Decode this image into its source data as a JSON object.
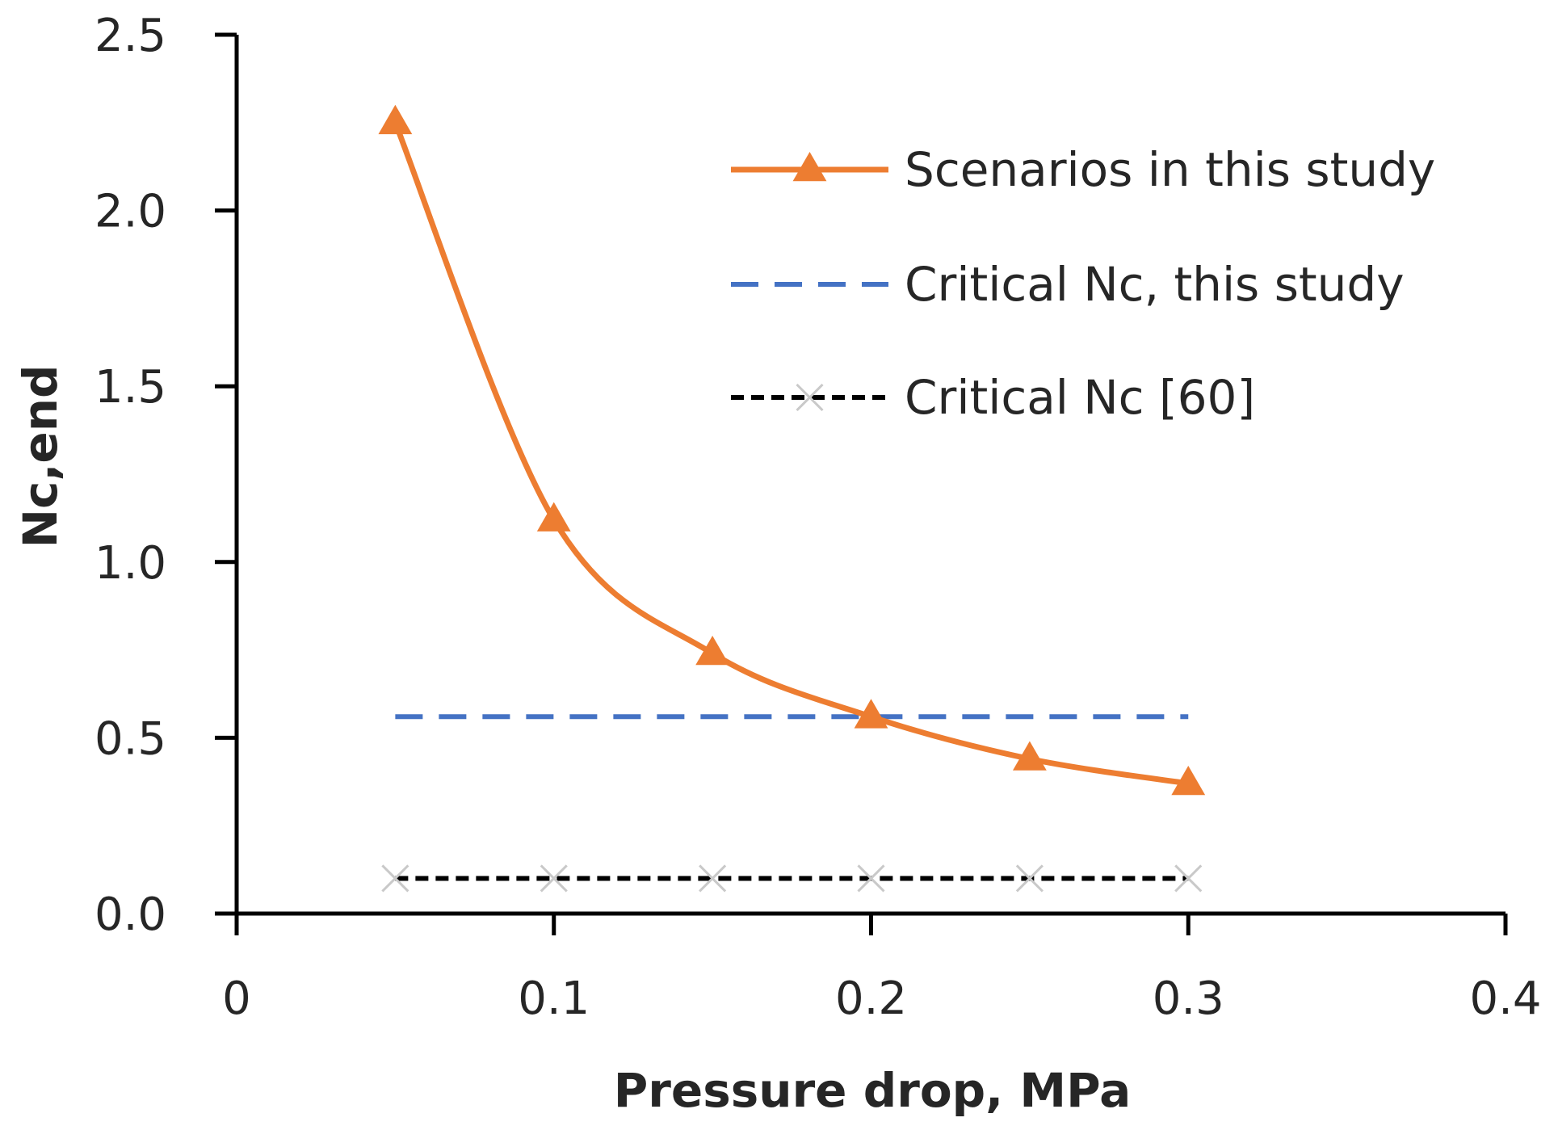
{
  "chart_data": {
    "type": "line",
    "title": "",
    "xlabel": "Pressure drop, MPa",
    "ylabel": "Nc,end",
    "xlim": [
      0,
      0.4
    ],
    "ylim": [
      0,
      2.5
    ],
    "x_ticks": [
      0,
      0.1,
      0.2,
      0.3,
      0.4
    ],
    "x_tick_labels": [
      "0",
      "0.1",
      "0.2",
      "0.3",
      "0.4"
    ],
    "y_ticks": [
      0,
      0.5,
      1.0,
      1.5,
      2.0,
      2.5
    ],
    "y_tick_labels": [
      "0.0",
      "0.5",
      "1.0",
      "1.5",
      "2.0",
      "2.5"
    ],
    "grid": false,
    "legend_position": "top-right",
    "series": [
      {
        "name": "Scenarios in this study",
        "color": "#ed7d31",
        "style": "solid-smooth",
        "marker": "triangle",
        "x": [
          0.05,
          0.1,
          0.15,
          0.2,
          0.25,
          0.3
        ],
        "y": [
          2.25,
          1.12,
          0.74,
          0.56,
          0.44,
          0.37
        ]
      },
      {
        "name": "Critical Nc, this study",
        "color": "#4472c4",
        "style": "dashed",
        "marker": "none",
        "x": [
          0.05,
          0.3
        ],
        "y": [
          0.56,
          0.56
        ]
      },
      {
        "name": "Critical Nc [60]",
        "color": "#000000",
        "style": "dotted",
        "marker": "x",
        "x": [
          0.05,
          0.1,
          0.15,
          0.2,
          0.25,
          0.3
        ],
        "y": [
          0.1,
          0.1,
          0.1,
          0.1,
          0.1,
          0.1
        ]
      }
    ]
  }
}
